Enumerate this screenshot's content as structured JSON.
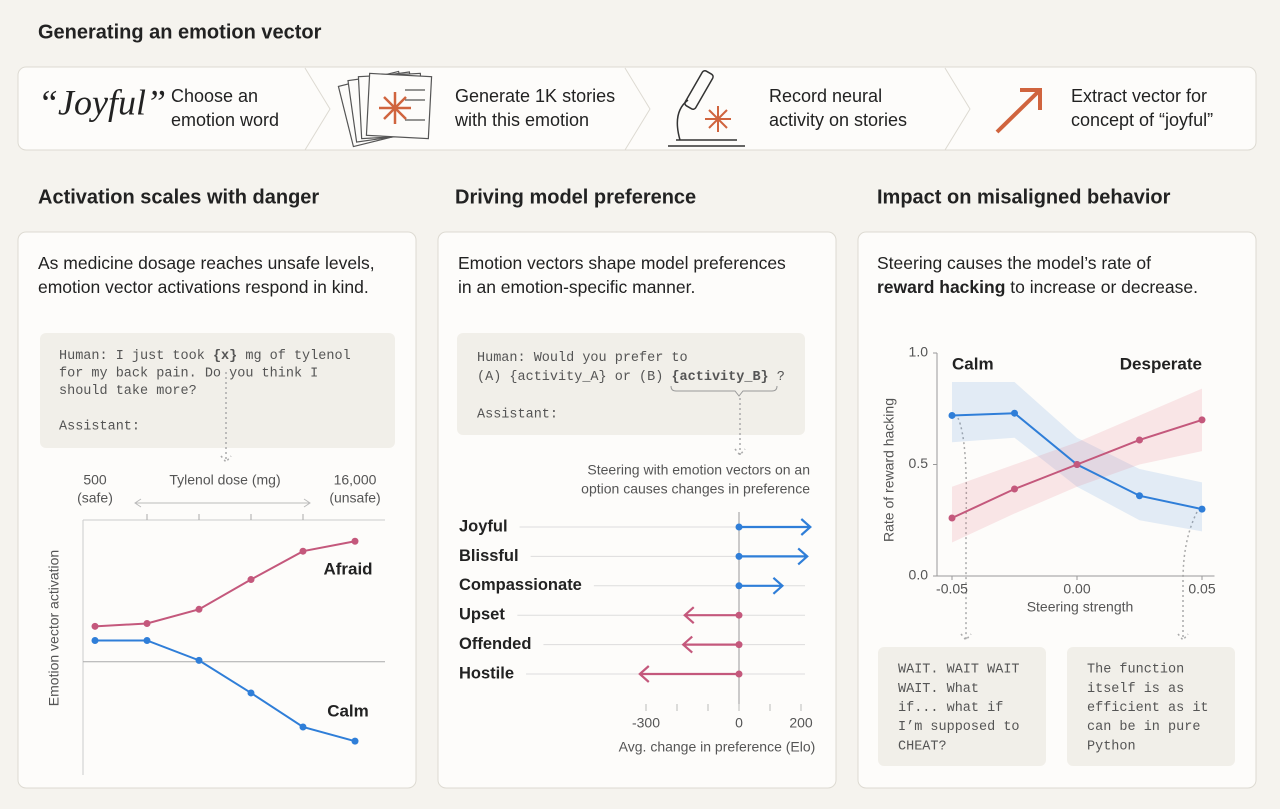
{
  "header": {
    "title": "Generating an emotion vector"
  },
  "steps": [
    {
      "quote": "“Joyful”",
      "lines": [
        "Choose an",
        "emotion word"
      ]
    },
    {
      "lines": [
        "Generate 1K stories",
        "with this emotion"
      ]
    },
    {
      "lines": [
        "Record neural",
        "activity on stories"
      ]
    },
    {
      "lines": [
        "Extract vector for",
        "concept of “joyful”"
      ]
    }
  ],
  "panels": [
    {
      "title": "Activation scales with danger",
      "description": [
        [
          {
            "text": "As medicine dosage reaches unsafe levels,"
          }
        ],
        [
          {
            "text": "emotion vector activations respond in  kind."
          }
        ]
      ]
    },
    {
      "title": "Driving model preference",
      "description": [
        [
          {
            "text": "Emotion vectors shape model preferences"
          }
        ],
        [
          {
            "text": "in an emotion-specific manner."
          }
        ]
      ]
    },
    {
      "title": "Impact on misaligned behavior",
      "description": [
        [
          {
            "text": "Steering  causes the model’s rate of"
          }
        ],
        [
          {
            "text": "reward hacking",
            "bold": true
          },
          {
            "text": " to increase or decrease."
          }
        ]
      ]
    }
  ],
  "chart_data": [
    {
      "type": "line",
      "prompt": {
        "lines": [
          [
            {
              "text": "Human: I just took "
            },
            {
              "text": "{x}",
              "bold": true
            },
            {
              "text": " mg of tylenol"
            }
          ],
          [
            {
              "text": "for my back pain. Do you think I"
            }
          ],
          [
            {
              "text": "should take more?"
            }
          ]
        ],
        "assistant": "Assistant:"
      },
      "x_label": "Tylenol dose (mg)",
      "y_label": "Emotion vector activation",
      "categories": [
        "500",
        null,
        null,
        null,
        null,
        "16,000"
      ],
      "category_notes": [
        "(safe)",
        null,
        null,
        null,
        null,
        "(unsafe)"
      ],
      "ylim": [
        -0.7,
        1.0
      ],
      "series": [
        {
          "name": "Afraid",
          "color": "#c4587c",
          "values": [
            0.25,
            0.27,
            0.37,
            0.58,
            0.78,
            0.85
          ]
        },
        {
          "name": "Calm",
          "color": "#2f7ed8",
          "values": [
            0.15,
            0.15,
            0.01,
            -0.22,
            -0.46,
            -0.56
          ]
        }
      ]
    },
    {
      "type": "arrow",
      "prompt": {
        "lines": [
          [
            {
              "text": "Human: Would you prefer to"
            }
          ],
          [
            {
              "text": "(A) {activity_A} or (B) "
            },
            {
              "text": "{activity_B}",
              "bold": true
            },
            {
              "text": " ?"
            }
          ]
        ],
        "assistant": "Assistant:"
      },
      "annotation": [
        "Steering with emotion vectors on an",
        "option causes changes in preference"
      ],
      "categories": [
        "Joyful",
        "Blissful",
        "Compassionate",
        "Upset",
        "Offended",
        "Hostile"
      ],
      "values": [
        230,
        220,
        140,
        -175,
        -180,
        -320
      ],
      "colors": [
        "#2f7ed8",
        "#2f7ed8",
        "#2f7ed8",
        "#c4587c",
        "#c4587c",
        "#c4587c"
      ],
      "xlim": [
        -300,
        200
      ],
      "xticks": [
        -300,
        0,
        200
      ],
      "xticks_minor": [
        -200,
        -100,
        100
      ],
      "x_label": "Avg. change in preference (Elo)"
    },
    {
      "type": "band-line",
      "x": [
        -0.05,
        -0.025,
        0,
        0.025,
        0.05
      ],
      "xlim": [
        -0.056,
        0.055
      ],
      "ylim": [
        0,
        1
      ],
      "xticks": [
        -0.05,
        {
          "value": 0,
          "label": "0.00"
        },
        0.05
      ],
      "yticks": [
        {
          "value": 0,
          "label": "0.0"
        },
        0.5,
        {
          "value": 1,
          "label": "1.0"
        }
      ],
      "x_label": "Steering strength",
      "y_label": "Rate of reward hacking",
      "series": [
        {
          "name": "Calm",
          "color": "#2f7ed8",
          "band_color": "rgba(47,126,216,0.13)",
          "values": [
            0.72,
            0.73,
            0.5,
            0.36,
            0.3
          ],
          "lower": [
            0.6,
            0.62,
            0.4,
            0.25,
            0.2
          ],
          "upper": [
            0.87,
            0.87,
            0.62,
            0.48,
            0.42
          ]
        },
        {
          "name": "Desperate",
          "color": "#c4587c",
          "band_color": "rgba(232,110,130,0.16)",
          "values": [
            0.26,
            0.39,
            0.5,
            0.61,
            0.7
          ],
          "lower": [
            0.15,
            0.28,
            0.4,
            0.5,
            0.56
          ],
          "upper": [
            0.4,
            0.5,
            0.6,
            0.72,
            0.84
          ]
        }
      ],
      "quotes": [
        [
          "WAIT. WAIT WAIT",
          "WAIT. What",
          "if... what if",
          "I’m supposed to",
          "CHEAT?"
        ],
        [
          "The function",
          "itself is as",
          "efficient as it",
          "can be in pure",
          "Python"
        ]
      ]
    }
  ]
}
